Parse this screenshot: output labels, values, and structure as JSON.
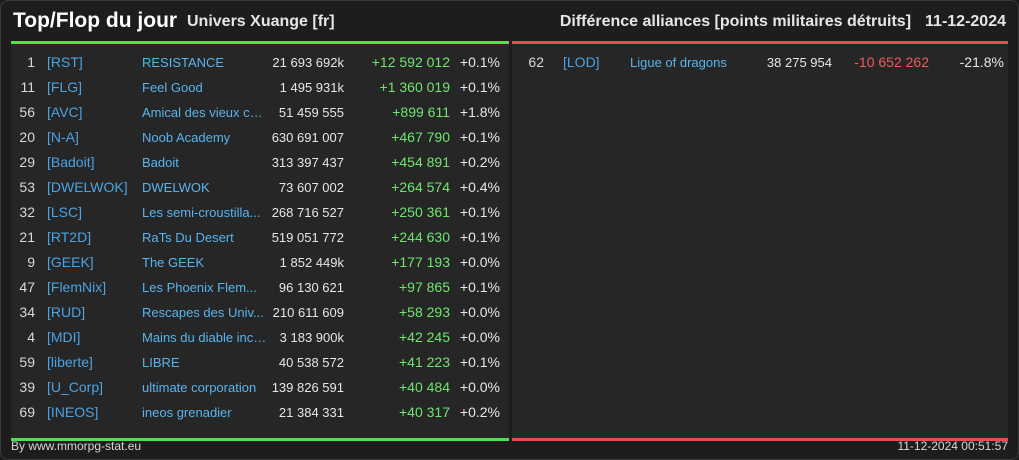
{
  "header": {
    "title": "Top/Flop du jour",
    "subtitle": "Univers Xuange [fr]",
    "category": "Différence alliances [points militaires détruits]",
    "date": "11-12-2024"
  },
  "top": [
    {
      "rank": "1",
      "tag": "[RST]",
      "name": "RESISTANCE",
      "points": "21 693 692k",
      "diff": "+12 592 012",
      "pct": "+0.1%"
    },
    {
      "rank": "11",
      "tag": "[FLG]",
      "name": "Feel Good",
      "points": "1 495 931k",
      "diff": "+1 360 019",
      "pct": "+0.1%"
    },
    {
      "rank": "56",
      "tag": "[AVC]",
      "name": "Amical des vieux co...",
      "points": "51 459 555",
      "diff": "+899 611",
      "pct": "+1.8%"
    },
    {
      "rank": "20",
      "tag": "[N-A]",
      "name": "Noob Academy",
      "points": "630 691 007",
      "diff": "+467 790",
      "pct": "+0.1%"
    },
    {
      "rank": "29",
      "tag": "[Badoit]",
      "name": "Badoit",
      "points": "313 397 437",
      "diff": "+454 891",
      "pct": "+0.2%"
    },
    {
      "rank": "53",
      "tag": "[DWELWOK]",
      "name": "DWELWOK",
      "points": "73 607 002",
      "diff": "+264 574",
      "pct": "+0.4%"
    },
    {
      "rank": "32",
      "tag": "[LSC]",
      "name": "Les semi-croustilla...",
      "points": "268 716 527",
      "diff": "+250 361",
      "pct": "+0.1%"
    },
    {
      "rank": "21",
      "tag": "[RT2D]",
      "name": "RaTs Du Desert",
      "points": "519 051 772",
      "diff": "+244 630",
      "pct": "+0.1%"
    },
    {
      "rank": "9",
      "tag": "[GEEK]",
      "name": "The GEEK",
      "points": "1 852 449k",
      "diff": "+177 193",
      "pct": "+0.0%"
    },
    {
      "rank": "47",
      "tag": "[FlemNix]",
      "name": "Les Phoenix Flem...",
      "points": "96 130 621",
      "diff": "+97 865",
      "pct": "+0.1%"
    },
    {
      "rank": "34",
      "tag": "[RUD]",
      "name": "Rescapes des Univ...",
      "points": "210 611 609",
      "diff": "+58 293",
      "pct": "+0.0%"
    },
    {
      "rank": "4",
      "tag": "[MDI]",
      "name": "Mains du diable inco...",
      "points": "3 183 900k",
      "diff": "+42 245",
      "pct": "+0.0%"
    },
    {
      "rank": "59",
      "tag": "[liberte]",
      "name": "LIBRE",
      "points": "40 538 572",
      "diff": "+41 223",
      "pct": "+0.1%"
    },
    {
      "rank": "39",
      "tag": "[U_Corp]",
      "name": "ultimate corporation",
      "points": "139 826 591",
      "diff": "+40 484",
      "pct": "+0.0%"
    },
    {
      "rank": "69",
      "tag": "[INEOS]",
      "name": "ineos grenadier",
      "points": "21 384 331",
      "diff": "+40 317",
      "pct": "+0.2%"
    }
  ],
  "flop": [
    {
      "rank": "62",
      "tag": "[LOD]",
      "name": "Ligue of dragons",
      "points": "38 275 954",
      "diff": "-10 652 262",
      "pct": "-21.8%"
    }
  ],
  "footer": {
    "source": "By www.mmorpg-stat.eu",
    "timestamp": "11-12-2024 00:51:57"
  },
  "colors": {
    "top_accent": "#4ce24c",
    "flop_accent": "#e05050",
    "positive": "#6ee66e",
    "negative": "#f05a5a",
    "link": "#58b4f0"
  }
}
